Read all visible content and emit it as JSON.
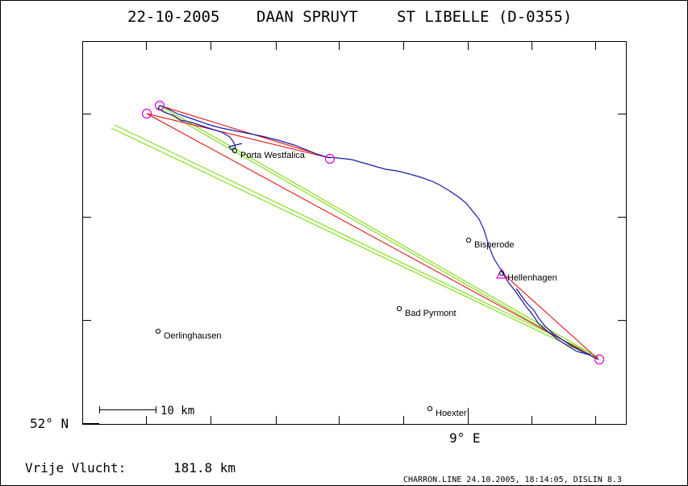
{
  "header": {
    "date": "22-10-2005",
    "pilot": "DAAN SPRUYT",
    "glider": "ST LIBELLE (D-0355)"
  },
  "axes": {
    "lat_label": "52° N",
    "lon_label": "9° E"
  },
  "scale_bar": {
    "label": "10 km"
  },
  "footer": {
    "distance_label": "Vrije Vlucht:",
    "distance_value": "181.8 km",
    "credits": "CHARRON.LINE 24.10.2005, 18:14:05, DISLIN 8.3"
  },
  "places": [
    {
      "name": "Porta Westfalica"
    },
    {
      "name": "Bisperode"
    },
    {
      "name": "Hellenhagen"
    },
    {
      "name": "Bad Pyrmont"
    },
    {
      "name": "Oerlinghausen"
    },
    {
      "name": "Hoexter"
    }
  ],
  "colors": {
    "track": "#1a1aa8",
    "task_legs": "#e00000",
    "green_lines": "#88dd22",
    "turnpoint_markers": "#dd00dd",
    "frame": "#000000"
  }
}
